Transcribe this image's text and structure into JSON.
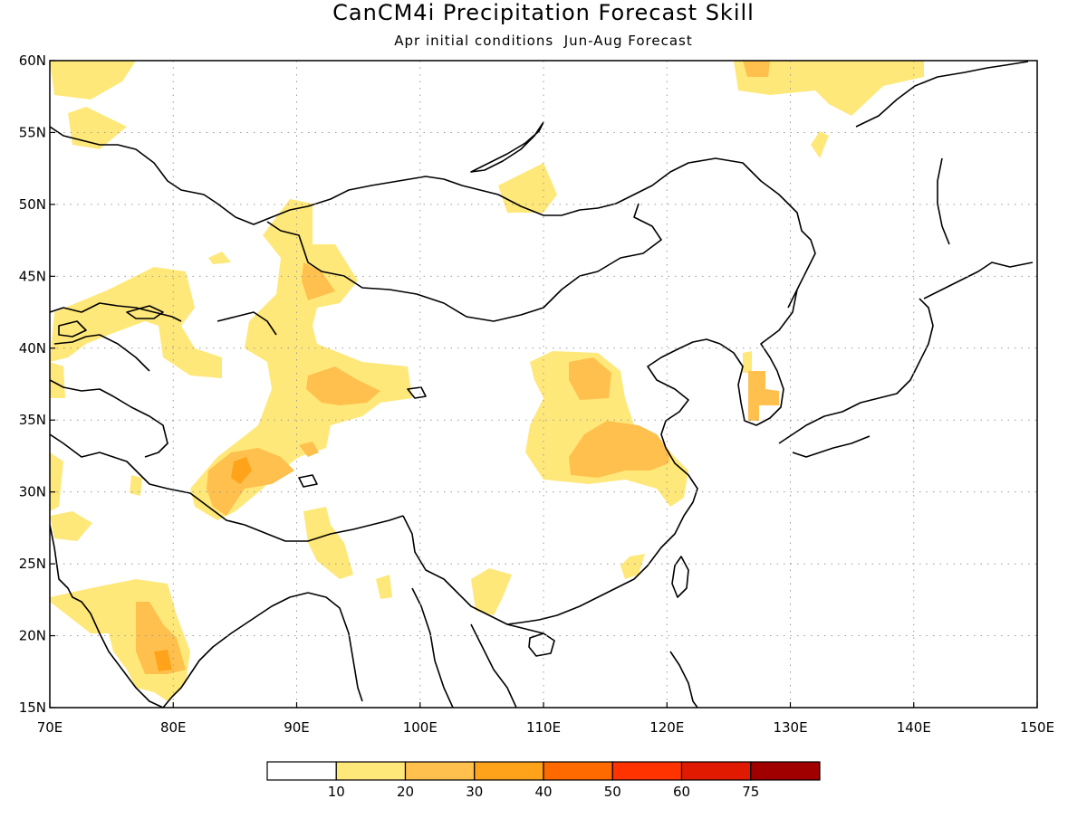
{
  "title": "CanCM4i Precipitation Forecast Skill",
  "subtitle": "Apr initial conditions  Jun-Aug Forecast",
  "map": {
    "lon_range": [
      70,
      150
    ],
    "lat_range": [
      15,
      60
    ],
    "lon_ticks": [
      "70E",
      "80E",
      "90E",
      "100E",
      "110E",
      "120E",
      "130E",
      "140E",
      "150E"
    ],
    "lat_ticks": [
      "15N",
      "20N",
      "25N",
      "30N",
      "35N",
      "40N",
      "45N",
      "50N",
      "55N",
      "60N"
    ],
    "gridlines": "dotted"
  },
  "colorbar": {
    "labels": [
      "10",
      "20",
      "30",
      "40",
      "50",
      "60",
      "75"
    ],
    "colors": [
      "#ffffff",
      "#ffe87a",
      "#ffc04d",
      "#ffa31a",
      "#ff6a00",
      "#ff3300",
      "#e01a00",
      "#a00000"
    ]
  }
}
